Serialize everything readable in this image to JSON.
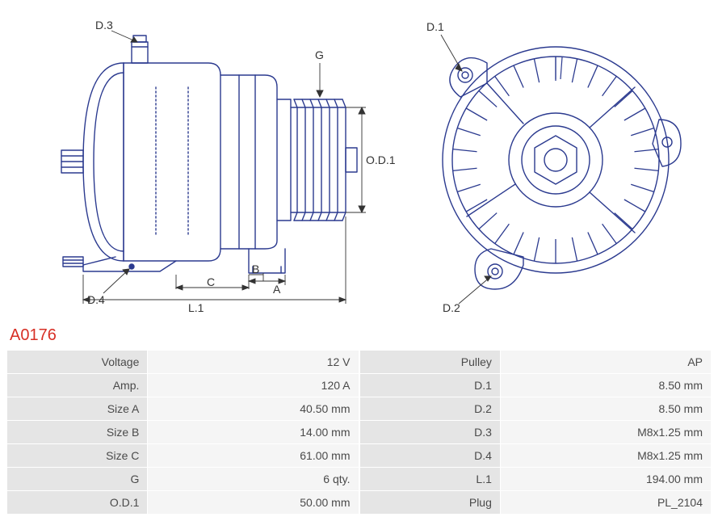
{
  "part_code": "A0176",
  "colors": {
    "stroke": "#2b3a8f",
    "text": "#333333",
    "accent": "#d72f25",
    "label_bg": "#e5e5e5",
    "value_bg": "#f5f5f5",
    "background": "#ffffff"
  },
  "drawing_side": {
    "labels": {
      "D3": "D.3",
      "D4": "D.4",
      "G": "G",
      "OD1": "O.D.1",
      "A": "A",
      "B": "B",
      "C": "C",
      "L1": "L.1"
    }
  },
  "drawing_front": {
    "labels": {
      "D1": "D.1",
      "D2": "D.2"
    }
  },
  "spec_left": [
    {
      "label": "Voltage",
      "value": "12 V"
    },
    {
      "label": "Amp.",
      "value": "120 A"
    },
    {
      "label": "Size A",
      "value": "40.50 mm"
    },
    {
      "label": "Size B",
      "value": "14.00 mm"
    },
    {
      "label": "Size C",
      "value": "61.00 mm"
    },
    {
      "label": "G",
      "value": "6 qty."
    },
    {
      "label": "O.D.1",
      "value": "50.00 mm"
    }
  ],
  "spec_right": [
    {
      "label": "Pulley",
      "value": "AP"
    },
    {
      "label": "D.1",
      "value": "8.50 mm"
    },
    {
      "label": "D.2",
      "value": "8.50 mm"
    },
    {
      "label": "D.3",
      "value": "M8x1.25 mm"
    },
    {
      "label": "D.4",
      "value": "M8x1.25 mm"
    },
    {
      "label": "L.1",
      "value": "194.00 mm"
    },
    {
      "label": "Plug",
      "value": "PL_2104"
    }
  ]
}
